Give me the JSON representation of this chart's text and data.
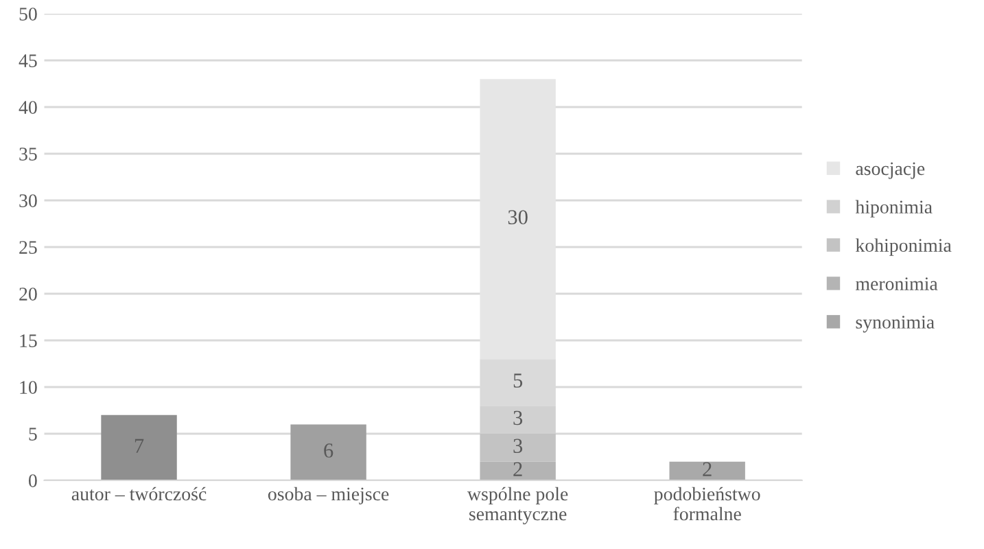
{
  "chart_data": {
    "type": "bar",
    "stacked": true,
    "categories": [
      "autor – twórczość",
      "osoba – miejsce",
      "wspólne pole\nsemantyczne",
      "podobieństwo\nformalne"
    ],
    "series": [
      {
        "name": "synonimia",
        "color": "#a8a8a8",
        "colors": [
          "#8f8f8f",
          "#a0a0a0",
          "#b4b4b4",
          "#a9a9a9"
        ],
        "values": [
          7,
          6,
          2,
          2
        ]
      },
      {
        "name": "meronimia",
        "color": "#b4b4b4",
        "colors": [
          null,
          null,
          "#c3c3c3",
          null
        ],
        "values": [
          null,
          null,
          3,
          null
        ]
      },
      {
        "name": "kohiponimia",
        "color": "#c3c3c3",
        "colors": [
          null,
          null,
          "#d1d1d1",
          null
        ],
        "values": [
          null,
          null,
          3,
          null
        ]
      },
      {
        "name": "hiponimia",
        "color": "#d1d1d1",
        "colors": [
          null,
          null,
          "#dadada",
          null
        ],
        "values": [
          null,
          null,
          5,
          null
        ]
      },
      {
        "name": "asocjacje",
        "color": "#e6e6e6",
        "colors": [
          null,
          null,
          "#e6e6e6",
          null
        ],
        "values": [
          null,
          null,
          30,
          null
        ]
      }
    ],
    "ylim": [
      0,
      50
    ],
    "yticks": [
      0,
      5,
      10,
      15,
      20,
      25,
      30,
      35,
      40,
      45,
      50
    ],
    "grid": "y",
    "legend": "right",
    "data_labels": true
  }
}
